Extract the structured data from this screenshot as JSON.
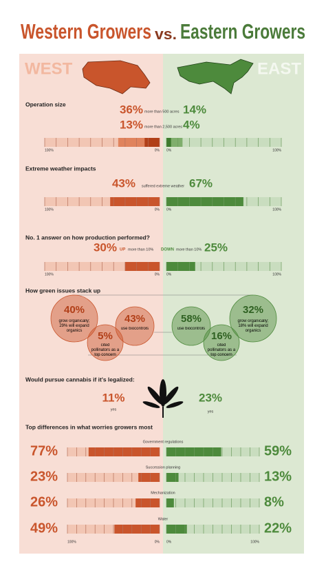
{
  "title": {
    "west": "Western Growers",
    "vs": "vs.",
    "east": "Eastern Growers"
  },
  "sides": {
    "west": "WEST",
    "east": "EAST"
  },
  "scale": {
    "max": 100,
    "ticks": [
      {
        "value": 100,
        "label": "100%"
      },
      {
        "value": 0,
        "label": "0%"
      }
    ]
  },
  "operation_size": {
    "heading": "Operation size",
    "rows": [
      {
        "west": {
          "value": 36,
          "label": "36%"
        },
        "note": "more than 500 acres",
        "east": {
          "value": 14,
          "label": "14%"
        }
      },
      {
        "west": {
          "value": 13,
          "label": "13%"
        },
        "note": "more than 2,500 acres",
        "east": {
          "value": 4,
          "label": "4%"
        }
      }
    ]
  },
  "weather": {
    "heading": "Extreme weather impacts",
    "west": {
      "value": 43,
      "label": "43%"
    },
    "note": "suffered extreme weather",
    "east": {
      "value": 67,
      "label": "67%"
    }
  },
  "production": {
    "heading": "No. 1 answer on how production performed?",
    "west": {
      "value": 30,
      "label": "30%"
    },
    "west_note": {
      "strong": "UP",
      "text": "more than 10%"
    },
    "east_note": {
      "strong": "DOWN",
      "text": "more than 10%"
    },
    "east": {
      "value": 25,
      "label": "25%"
    }
  },
  "green": {
    "heading": "How green issues stack up",
    "west": [
      {
        "label": "40%",
        "text": "grow organically; 29% will expand organics"
      },
      {
        "label": "43%",
        "text": "use biocontrols"
      },
      {
        "label": "5%",
        "text": "cited pollinators as a top concern"
      }
    ],
    "east": [
      {
        "label": "58%",
        "text": "use biocontrols"
      },
      {
        "label": "16%",
        "text": "cited pollinators as a top concern"
      },
      {
        "label": "32%",
        "text": "grow organically; 18% will expand organics"
      }
    ]
  },
  "cannabis": {
    "heading": "Would pursue cannabis if it's legalized:",
    "west": {
      "label": "11%",
      "note": "yes"
    },
    "east": {
      "label": "23%",
      "note": "yes"
    }
  },
  "worries": {
    "heading": "Top differences in what worries growers most",
    "rows": [
      {
        "name": "Government regulations",
        "west": {
          "value": 77,
          "label": "77%"
        },
        "east": {
          "value": 59,
          "label": "59%"
        }
      },
      {
        "name": "Succession planning",
        "west": {
          "value": 23,
          "label": "23%"
        },
        "east": {
          "value": 13,
          "label": "13%"
        }
      },
      {
        "name": "Mechanization",
        "west": {
          "value": 26,
          "label": "26%"
        },
        "east": {
          "value": 8,
          "label": "8%"
        }
      },
      {
        "name": "Water",
        "west": {
          "value": 49,
          "label": "49%"
        },
        "east": {
          "value": 22,
          "label": "22%"
        }
      }
    ]
  }
}
